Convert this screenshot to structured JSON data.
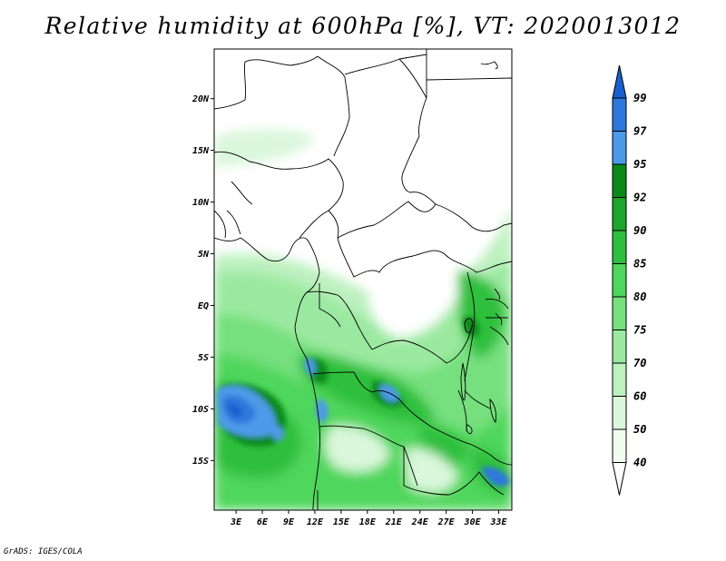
{
  "title": "Relative humidity at 600hPa [%], VT: 2020013012",
  "credit": "GrADS: IGES/COLA",
  "axes": {
    "lon_ticks": [
      "3E",
      "6E",
      "9E",
      "12E",
      "15E",
      "18E",
      "21E",
      "24E",
      "27E",
      "30E",
      "33E"
    ],
    "lon_values": [
      3,
      6,
      9,
      12,
      15,
      18,
      21,
      24,
      27,
      30,
      33
    ],
    "lat_ticks": [
      "20N",
      "15N",
      "10N",
      "5N",
      "EQ",
      "5S",
      "10S",
      "15S"
    ],
    "lat_values": [
      20,
      15,
      10,
      5,
      0,
      -5,
      -10,
      -15
    ],
    "lon_range": [
      0.5,
      34.5
    ],
    "lat_range": [
      -19.8,
      24.8
    ]
  },
  "colorbar": {
    "labels": [
      "99",
      "97",
      "95",
      "92",
      "90",
      "85",
      "80",
      "75",
      "70",
      "60",
      "50",
      "40"
    ],
    "colors": [
      "#1a5fcf",
      "#2d78dc",
      "#4d9ae8",
      "#0a8a1a",
      "#1da52c",
      "#2fbf3e",
      "#4fd65c",
      "#76e07e",
      "#9be9a0",
      "#bdf1c0",
      "#daf7dc",
      "#f0fcf0",
      "#ffffff"
    ]
  }
}
